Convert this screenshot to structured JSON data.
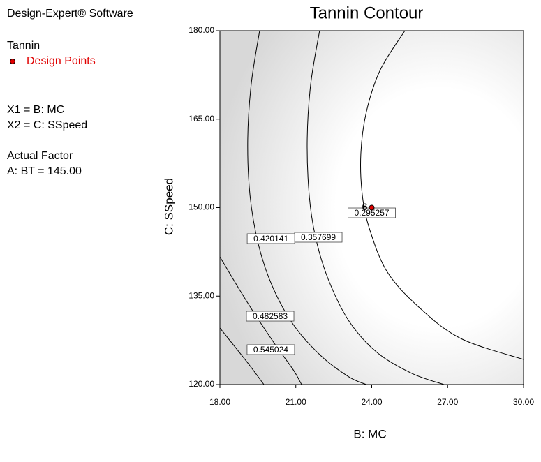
{
  "chart_data": {
    "type": "contour",
    "title": "Tannin Contour",
    "software": "Design-Expert® Software",
    "response": "Tannin",
    "legend": {
      "name": "Design Points",
      "color": "#e00000"
    },
    "factors": [
      "X1 = B: MC",
      "X2 = C: SSpeed"
    ],
    "actual_factor_heading": "Actual Factor",
    "actual_factor": "A: BT = 145.00",
    "xlabel": "B: MC",
    "ylabel": "C: SSpeed",
    "xlim": [
      18,
      30
    ],
    "ylim": [
      120,
      180
    ],
    "xticks": [
      {
        "value": 18,
        "label": "18.00"
      },
      {
        "value": 21,
        "label": "21.00"
      },
      {
        "value": 24,
        "label": "24.00"
      },
      {
        "value": 27,
        "label": "27.00"
      },
      {
        "value": 30,
        "label": "30.00"
      }
    ],
    "yticks": [
      {
        "value": 120,
        "label": "120.00"
      },
      {
        "value": 135,
        "label": "135.00"
      },
      {
        "value": 150,
        "label": "150.00"
      },
      {
        "value": 165,
        "label": "165.00"
      },
      {
        "value": 180,
        "label": "180.00"
      }
    ],
    "contours": [
      {
        "level": 0.295257,
        "x": [
          25.31,
          24.34,
          23.79,
          23.57,
          23.63,
          23.93,
          24.62,
          25.86,
          27.52,
          30
        ],
        "y": [
          180,
          173.37,
          166.27,
          159.17,
          152.07,
          146.15,
          139.05,
          133.14,
          127.81,
          124.26
        ]
      },
      {
        "level": 0.357699,
        "x": [
          21.94,
          21.59,
          21.45,
          21.53,
          21.78,
          22.28,
          23.1,
          24.21,
          25.59,
          26.86
        ],
        "y": [
          180,
          171.01,
          161.54,
          152.07,
          144.97,
          137.87,
          130.77,
          125.44,
          121.89,
          120
        ]
      },
      {
        "level": 0.420141,
        "x": [
          19.57,
          19.24,
          19.1,
          19.19,
          19.52,
          20.07,
          20.9,
          22.0,
          23.1,
          23.79
        ],
        "y": [
          180,
          171.01,
          161.54,
          152.07,
          143.79,
          136.69,
          130.18,
          124.85,
          121.3,
          120
        ]
      },
      {
        "level": 0.482583,
        "x": [
          18,
          18.69,
          19.38,
          20.21,
          20.9,
          21.23
        ],
        "y": [
          141.66,
          136.69,
          131.95,
          126.63,
          122.49,
          120
        ]
      },
      {
        "level": 0.545024,
        "x": [
          18,
          18.55,
          19.1,
          19.74
        ],
        "y": [
          129.59,
          126.63,
          123.67,
          120
        ]
      }
    ],
    "design_points": [
      {
        "x": 24,
        "y": 150,
        "label": 6
      }
    ]
  }
}
